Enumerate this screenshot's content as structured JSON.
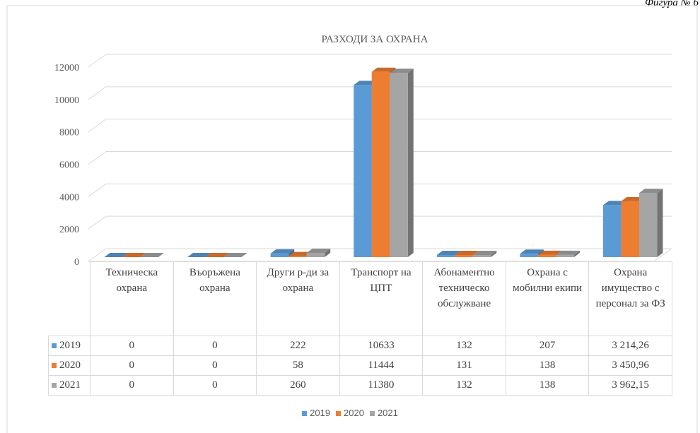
{
  "figure_label": "Фигура № 6",
  "chart_data": {
    "type": "bar3d",
    "title": "РАЗХОДИ ЗА ОХРАНА",
    "categories": [
      "Техническа охрана",
      "Въоръжена охрана",
      "Други р-ди за охрана",
      "Транспорт на ЦПТ",
      "Абонаментно техническо обслужване",
      "Охрана с мобилни екипи",
      "Охрана имущество с персонал за ФЗ"
    ],
    "series": [
      {
        "name": "2019",
        "color": "#5b9bd5",
        "values": [
          0,
          0,
          222,
          10633,
          132,
          207,
          3214.26
        ],
        "value_labels": [
          "0",
          "0",
          "222",
          "10633",
          "132",
          "207",
          "3 214,26"
        ]
      },
      {
        "name": "2020",
        "color": "#ed7d31",
        "values": [
          0,
          0,
          58,
          11444,
          131,
          138,
          3450.96
        ],
        "value_labels": [
          "0",
          "0",
          "58",
          "11444",
          "131",
          "138",
          "3 450,96"
        ]
      },
      {
        "name": "2021",
        "color": "#a5a5a5",
        "values": [
          0,
          0,
          260,
          11380,
          132,
          138,
          3962.15
        ],
        "value_labels": [
          "0",
          "0",
          "260",
          "11380",
          "132",
          "138",
          "3 962,15"
        ]
      }
    ],
    "ylim": [
      0,
      12000
    ],
    "yticks": [
      0,
      2000,
      4000,
      6000,
      8000,
      10000,
      12000
    ],
    "grid": true,
    "legend": "bottom"
  }
}
